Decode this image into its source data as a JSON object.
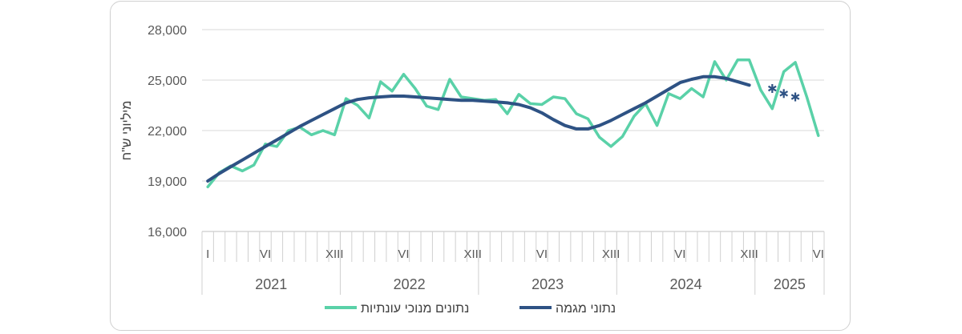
{
  "chart_data": {
    "type": "line",
    "ylabel": "מיליוני ש\"ח",
    "ylim": [
      16000,
      28000
    ],
    "yticks": [
      "16,000",
      "19,000",
      "22,000",
      "25,000",
      "28,000"
    ],
    "ytick_values": [
      16000,
      19000,
      22000,
      25000,
      28000
    ],
    "grid": "horizontal",
    "legend_placement": "bottom",
    "x_month_labels": [
      {
        "index": 0,
        "label": "I"
      },
      {
        "index": 5,
        "label": "VI"
      },
      {
        "index": 11,
        "label": "XIII"
      },
      {
        "index": 17,
        "label": "VI"
      },
      {
        "index": 23,
        "label": "XIII"
      },
      {
        "index": 29,
        "label": "VI"
      },
      {
        "index": 35,
        "label": "XIII"
      },
      {
        "index": 41,
        "label": "VI"
      },
      {
        "index": 47,
        "label": "XIII"
      },
      {
        "index": 53,
        "label": "VI"
      }
    ],
    "years": [
      {
        "label": "2021",
        "start": 0,
        "end": 11
      },
      {
        "label": "2022",
        "start": 12,
        "end": 23
      },
      {
        "label": "2023",
        "start": 24,
        "end": 35
      },
      {
        "label": "2024",
        "start": 36,
        "end": 47
      },
      {
        "label": "2025",
        "start": 48,
        "end": 53
      }
    ],
    "series": [
      {
        "name": "נתונים מנוכי עונתיות",
        "color": "#5ad1a8",
        "values": [
          18650,
          19500,
          19900,
          19600,
          19950,
          21200,
          21050,
          22000,
          22200,
          21750,
          22000,
          21750,
          23900,
          23500,
          22750,
          24900,
          24350,
          25350,
          24500,
          23450,
          23250,
          25050,
          24000,
          23900,
          23800,
          23850,
          23000,
          24150,
          23600,
          23550,
          24000,
          23900,
          23000,
          22700,
          21600,
          21050,
          21650,
          22850,
          23600,
          22300,
          24200,
          23900,
          24500,
          24000,
          26100,
          25000,
          26200,
          26200,
          24400,
          23300,
          25500,
          26050,
          24000,
          21700
        ]
      },
      {
        "name": "נתוני מגמה",
        "color": "#2e5284",
        "values": [
          19000,
          19450,
          19850,
          20250,
          20650,
          21050,
          21450,
          21850,
          22250,
          22600,
          22950,
          23300,
          23650,
          23850,
          23950,
          24000,
          24050,
          24050,
          24000,
          23950,
          23900,
          23850,
          23800,
          23800,
          23750,
          23700,
          23650,
          23550,
          23350,
          23050,
          22650,
          22300,
          22100,
          22100,
          22300,
          22600,
          22950,
          23300,
          23650,
          24050,
          24450,
          24850,
          25050,
          25200,
          25200,
          25100,
          24900,
          24700
        ]
      },
      {
        "name": "",
        "color": "#2e5284",
        "marker": "asterisk",
        "start_index": 49,
        "values": [
          24500,
          24200,
          24000
        ]
      }
    ]
  },
  "legend": {
    "items": [
      {
        "label": "נתונים מנוכי עונתיות",
        "color": "#5ad1a8"
      },
      {
        "label": "נתוני מגמה",
        "color": "#2e5284"
      }
    ]
  }
}
